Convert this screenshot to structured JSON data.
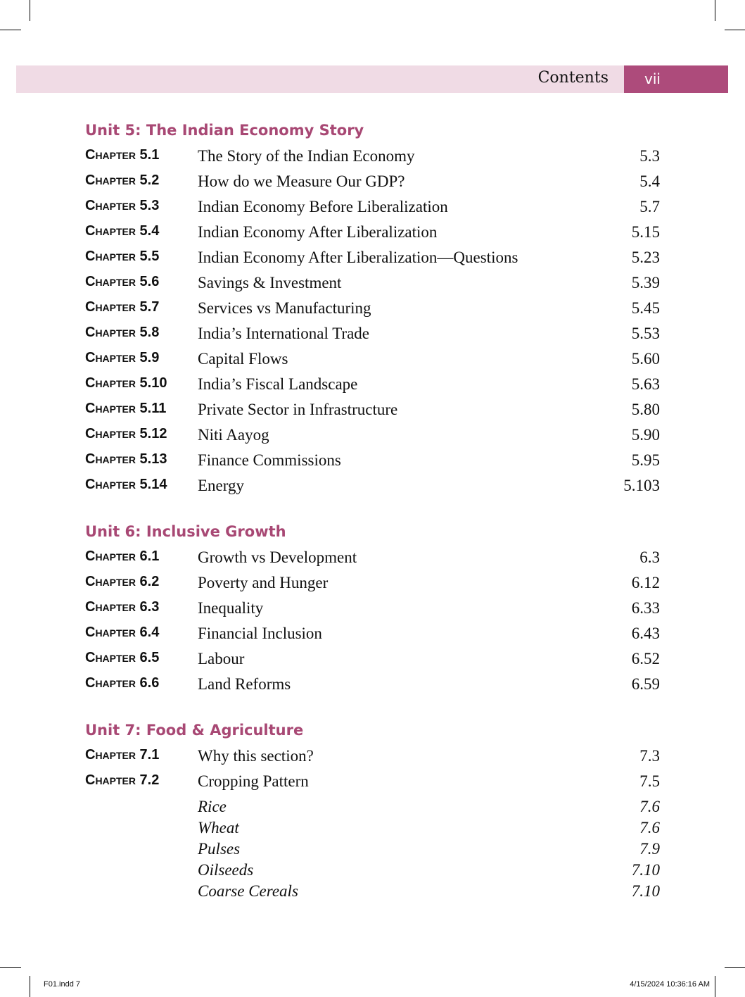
{
  "header": {
    "title": "Contents",
    "folio": "vii"
  },
  "units": [
    {
      "title": "Unit 5: The Indian Economy Story",
      "chapters": [
        {
          "label": "Chapter 5.1",
          "title": "The Story of the Indian Economy",
          "page": "5.3"
        },
        {
          "label": "Chapter 5.2",
          "title": "How do we Measure Our GDP?",
          "page": "5.4"
        },
        {
          "label": "Chapter 5.3",
          "title": "Indian Economy Before Liberalization",
          "page": "5.7"
        },
        {
          "label": "Chapter 5.4",
          "title": "Indian Economy After Liberalization",
          "page": "5.15"
        },
        {
          "label": "Chapter 5.5",
          "title": "Indian Economy After Liberalization—Questions",
          "page": "5.23"
        },
        {
          "label": "Chapter 5.6",
          "title": "Savings & Investment",
          "page": "5.39"
        },
        {
          "label": "Chapter 5.7",
          "title": "Services vs Manufacturing",
          "page": "5.45"
        },
        {
          "label": "Chapter 5.8",
          "title": "India’s International Trade",
          "page": "5.53"
        },
        {
          "label": "Chapter 5.9",
          "title": "Capital Flows",
          "page": "5.60"
        },
        {
          "label": "Chapter 5.10",
          "title": "India’s Fiscal Landscape",
          "page": "5.63"
        },
        {
          "label": "Chapter 5.11",
          "title": "Private Sector in Infrastructure",
          "page": "5.80"
        },
        {
          "label": "Chapter 5.12",
          "title": "Niti Aayog",
          "page": "5.90"
        },
        {
          "label": "Chapter 5.13",
          "title": "Finance Commissions",
          "page": "5.95"
        },
        {
          "label": "Chapter 5.14",
          "title": "Energy",
          "page": "5.103"
        }
      ]
    },
    {
      "title": "Unit 6: Inclusive Growth",
      "chapters": [
        {
          "label": "Chapter 6.1",
          "title": "Growth vs Development",
          "page": "6.3"
        },
        {
          "label": "Chapter 6.2",
          "title": "Poverty and Hunger",
          "page": "6.12"
        },
        {
          "label": "Chapter 6.3",
          "title": "Inequality",
          "page": "6.33"
        },
        {
          "label": "Chapter 6.4",
          "title": "Financial Inclusion",
          "page": "6.43"
        },
        {
          "label": "Chapter 6.5",
          "title": "Labour",
          "page": "6.52"
        },
        {
          "label": "Chapter 6.6",
          "title": "Land Reforms",
          "page": "6.59"
        }
      ]
    },
    {
      "title": "Unit 7: Food & Agriculture",
      "chapters": [
        {
          "label": "Chapter 7.1",
          "title": "Why this section?",
          "page": "7.3"
        },
        {
          "label": "Chapter 7.2",
          "title": "Cropping Pattern",
          "page": "7.5",
          "subs": [
            {
              "title": "Rice",
              "page": "7.6"
            },
            {
              "title": "Wheat",
              "page": "7.6"
            },
            {
              "title": "Pulses",
              "page": "7.9"
            },
            {
              "title": "Oilseeds",
              "page": "7.10"
            },
            {
              "title": "Coarse Cereals",
              "page": "7.10"
            }
          ]
        }
      ]
    }
  ],
  "slug": {
    "file": "F01.indd   7",
    "timestamp": "4/15/2024   10:36:16 AM"
  }
}
